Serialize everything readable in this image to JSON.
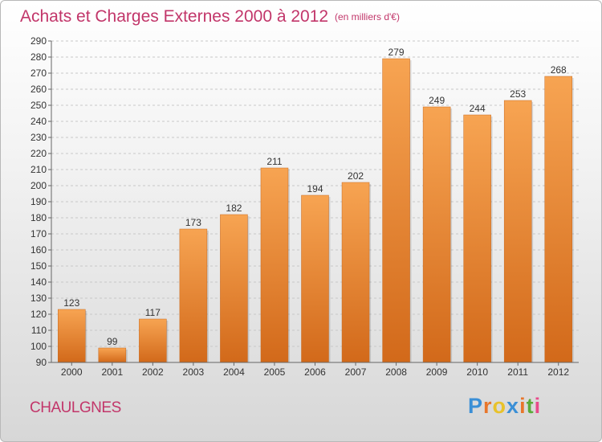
{
  "header": {
    "title": "Achats et Charges Externes 2000 à 2012",
    "subtitle": "(en milliers d'€)"
  },
  "footer": {
    "town": "CHAULGNES",
    "logo_letters": [
      "P",
      "r",
      "o",
      "x",
      "i",
      "t",
      "i"
    ]
  },
  "colors": {
    "title": "#c2366a",
    "bar_top": "#f7a452",
    "bar_bottom": "#d2691a",
    "logo": [
      "#3a8fd6",
      "#e8762b",
      "#e8c22b",
      "#3a8fd6",
      "#e8762b",
      "#5aab3a",
      "#e84a8a"
    ]
  },
  "chart_data": {
    "type": "bar",
    "categories": [
      "2000",
      "2001",
      "2002",
      "2003",
      "2004",
      "2005",
      "2006",
      "2007",
      "2008",
      "2009",
      "2010",
      "2011",
      "2012"
    ],
    "values": [
      123,
      99,
      117,
      173,
      182,
      211,
      194,
      202,
      279,
      249,
      244,
      253,
      268
    ],
    "ylim": [
      90,
      290
    ],
    "ytick_step": 10,
    "grid": true,
    "grid_style": "dashed"
  }
}
